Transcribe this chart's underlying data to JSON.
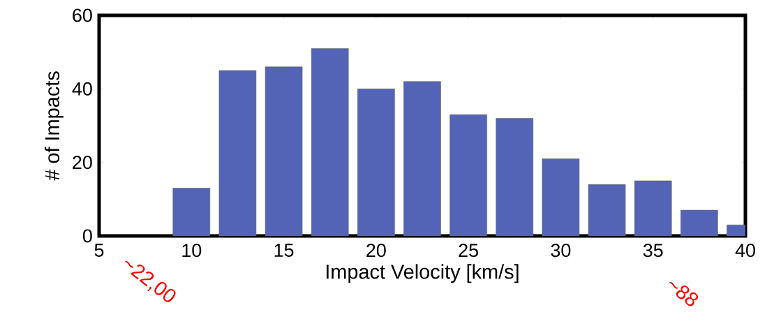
{
  "chart_data": {
    "type": "bar",
    "xlabel": "Impact Velocity [km/s]",
    "ylabel": "# of Impacts",
    "x": [
      10,
      12.5,
      15,
      17.5,
      20,
      22.5,
      25,
      27.5,
      30,
      32.5,
      35,
      37.5,
      40
    ],
    "values": [
      13,
      45,
      46,
      51,
      40,
      42,
      33,
      32,
      21,
      14,
      15,
      7,
      3
    ],
    "color": "#5364b7",
    "xlim": [
      5,
      40
    ],
    "xticks": [
      5,
      10,
      15,
      20,
      25,
      30,
      35,
      40
    ],
    "ylim": [
      0,
      60
    ],
    "yticks": [
      0,
      20,
      40,
      60
    ],
    "grid": false,
    "annotations": [
      "~22,00",
      "~88"
    ]
  }
}
